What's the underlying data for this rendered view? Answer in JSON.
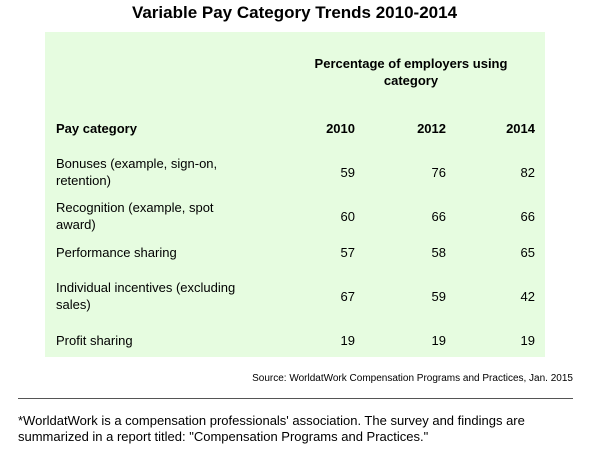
{
  "title": "Variable Pay Category Trends 2010-2014",
  "table": {
    "group_header": "Percentage of employers using category",
    "columns": [
      "Pay category",
      "2010",
      "2012",
      "2014"
    ],
    "rows": [
      [
        "Bonuses (example, sign-on, retention)",
        59,
        76,
        82
      ],
      [
        "Recognition (example, spot award)",
        60,
        66,
        66
      ],
      [
        "Performance sharing",
        57,
        58,
        65
      ],
      [
        "Individual incentives (excluding sales)",
        67,
        59,
        42
      ],
      [
        "Profit sharing",
        19,
        19,
        19
      ]
    ]
  },
  "source": "Source: WorldatWork Compensation Programs and Practices, Jan. 2015",
  "footnote": "*WorldatWork is a compensation professionals' association. The survey and findings are summarized in a report titled: \"Compensation Programs and Practices.\""
}
